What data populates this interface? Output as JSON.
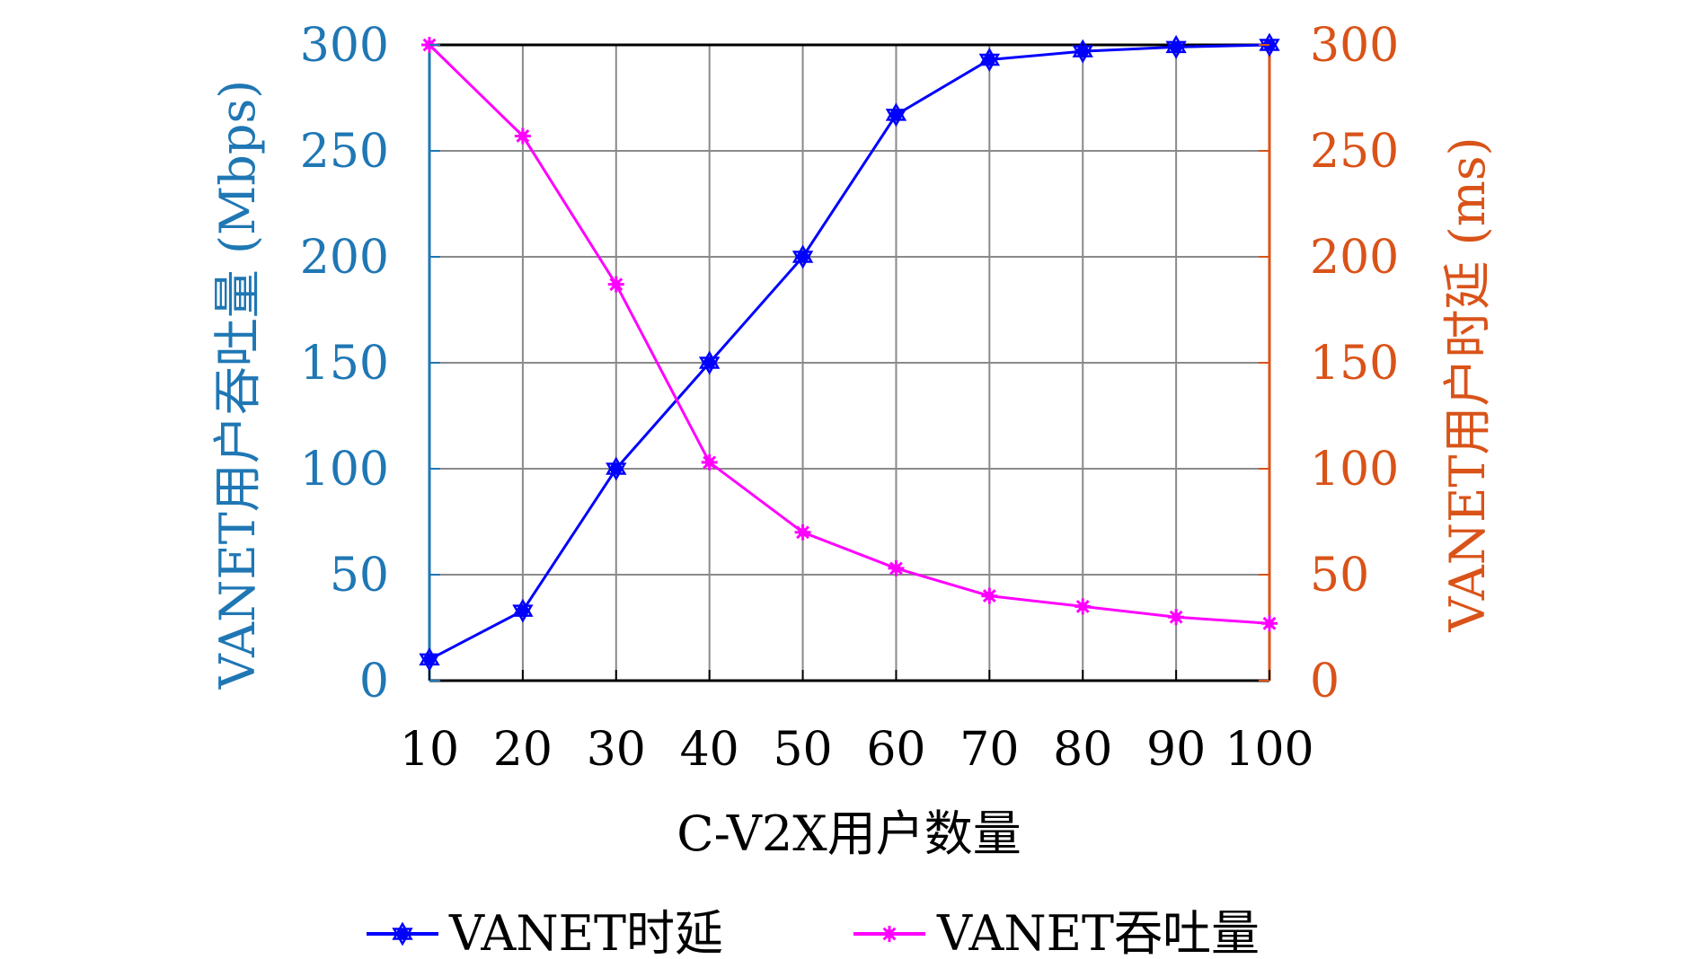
{
  "chart_data": {
    "type": "line",
    "x": [
      10,
      20,
      30,
      40,
      50,
      60,
      70,
      80,
      90,
      100
    ],
    "xlabel": "C-V2X用户数量",
    "ylabel_left": "VANET用户吞吐量 (Mbps)",
    "ylabel_right": "VANET用户时延 (ms)",
    "ylim_left": [
      0,
      300
    ],
    "ylim_right": [
      0,
      300
    ],
    "yticks": [
      0,
      50,
      100,
      150,
      200,
      250,
      300
    ],
    "xticks": [
      10,
      20,
      30,
      40,
      50,
      60,
      70,
      80,
      90,
      100
    ],
    "grid": true,
    "legend_position": "bottom",
    "colors": {
      "left_axis": "#1f77b4",
      "right_axis": "#d95319"
    },
    "series": [
      {
        "name": "VANET时延",
        "marker": "hexagram",
        "color": "#0000ff",
        "values": [
          10,
          33,
          100,
          150,
          200,
          267,
          293,
          297,
          299,
          300
        ]
      },
      {
        "name": "VANET吞吐量",
        "marker": "asterisk",
        "color": "#ff00ff",
        "values": [
          300,
          257,
          187,
          103,
          70,
          53,
          40,
          35,
          30,
          27
        ]
      }
    ]
  }
}
